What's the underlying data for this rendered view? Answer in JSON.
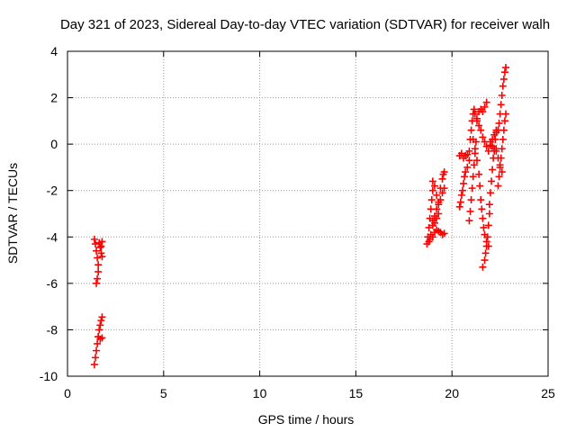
{
  "chart_data": {
    "type": "scatter",
    "title": "Day 321 of 2023, Sidereal Day-to-day VTEC variation (SDTVAR) for receiver walh",
    "xlabel": "GPS time / hours",
    "ylabel": "SDTVAR / TECUs",
    "xlim": [
      0,
      25
    ],
    "ylim": [
      -10,
      4
    ],
    "x_ticks": [
      "0",
      "5",
      "10",
      "15",
      "20",
      "25"
    ],
    "y_ticks": [
      "-10",
      "-8",
      "-6",
      "-4",
      "-2",
      "0",
      "2",
      "4"
    ],
    "grid": true,
    "marker": "plus",
    "color": "#ff0000",
    "series": [
      {
        "points": [
          [
            1.4,
            -4.1
          ],
          [
            1.45,
            -4.3
          ],
          [
            1.5,
            -4.6
          ],
          [
            1.55,
            -4.9
          ],
          [
            1.6,
            -5.2
          ],
          [
            1.6,
            -5.5
          ],
          [
            1.55,
            -5.8
          ],
          [
            1.5,
            -6.0
          ],
          [
            1.65,
            -4.25
          ],
          [
            1.7,
            -4.45
          ],
          [
            1.75,
            -4.7
          ],
          [
            1.8,
            -4.85
          ],
          [
            1.75,
            -4.4
          ],
          [
            1.8,
            -4.2
          ],
          [
            1.4,
            -9.5
          ],
          [
            1.45,
            -9.2
          ],
          [
            1.5,
            -8.9
          ],
          [
            1.55,
            -8.6
          ],
          [
            1.6,
            -8.3
          ],
          [
            1.65,
            -8.0
          ],
          [
            1.7,
            -7.8
          ],
          [
            1.75,
            -7.6
          ],
          [
            1.8,
            -7.45
          ],
          [
            1.6,
            -8.3
          ],
          [
            1.7,
            -8.4
          ],
          [
            1.8,
            -8.35
          ],
          [
            18.7,
            -4.3
          ],
          [
            18.75,
            -4.0
          ],
          [
            18.8,
            -3.6
          ],
          [
            18.85,
            -3.2
          ],
          [
            18.9,
            -2.8
          ],
          [
            18.95,
            -2.4
          ],
          [
            19.0,
            -2.0
          ],
          [
            19.0,
            -1.6
          ],
          [
            19.1,
            -1.8
          ],
          [
            19.2,
            -2.2
          ],
          [
            19.3,
            -2.5
          ],
          [
            19.4,
            -1.9
          ],
          [
            19.5,
            -1.5
          ],
          [
            19.55,
            -1.3
          ],
          [
            19.6,
            -1.2
          ],
          [
            18.8,
            -4.2
          ],
          [
            18.9,
            -3.9
          ],
          [
            19.0,
            -3.5
          ],
          [
            19.1,
            -3.1
          ],
          [
            19.2,
            -2.8
          ],
          [
            19.3,
            -2.6
          ],
          [
            19.4,
            -2.4
          ],
          [
            19.5,
            -2.1
          ],
          [
            19.6,
            -1.9
          ],
          [
            18.85,
            -4.1
          ],
          [
            19.0,
            -4.0
          ],
          [
            19.1,
            -3.8
          ],
          [
            19.2,
            -3.7
          ],
          [
            19.3,
            -3.75
          ],
          [
            19.4,
            -3.8
          ],
          [
            19.5,
            -3.9
          ],
          [
            19.6,
            -3.85
          ],
          [
            19.0,
            -3.3
          ],
          [
            19.1,
            -3.4
          ],
          [
            19.2,
            -3.2
          ],
          [
            19.3,
            -3.0
          ],
          [
            20.4,
            -0.5
          ],
          [
            20.5,
            -0.4
          ],
          [
            20.6,
            -0.6
          ],
          [
            20.7,
            -0.5
          ],
          [
            20.8,
            -0.45
          ],
          [
            20.4,
            -2.7
          ],
          [
            20.45,
            -2.5
          ],
          [
            20.5,
            -2.2
          ],
          [
            20.55,
            -2.0
          ],
          [
            20.6,
            -1.7
          ],
          [
            20.65,
            -1.4
          ],
          [
            20.7,
            -1.2
          ],
          [
            20.8,
            -1.0
          ],
          [
            20.9,
            -0.7
          ],
          [
            20.9,
            -0.3
          ],
          [
            20.95,
            0.2
          ],
          [
            21.0,
            0.6
          ],
          [
            21.05,
            1.0
          ],
          [
            21.1,
            1.3
          ],
          [
            21.15,
            1.5
          ],
          [
            21.2,
            1.3
          ],
          [
            21.3,
            1.1
          ],
          [
            21.4,
            1.4
          ],
          [
            21.5,
            1.5
          ],
          [
            21.6,
            1.4
          ],
          [
            21.7,
            1.6
          ],
          [
            21.8,
            1.8
          ],
          [
            20.9,
            -3.3
          ],
          [
            20.95,
            -2.9
          ],
          [
            21.0,
            -2.4
          ],
          [
            21.05,
            -1.9
          ],
          [
            21.1,
            -1.4
          ],
          [
            21.15,
            -0.9
          ],
          [
            21.2,
            -0.4
          ],
          [
            21.25,
            0.1
          ],
          [
            21.1,
            0.2
          ],
          [
            21.2,
            -0.2
          ],
          [
            21.3,
            -0.7
          ],
          [
            21.4,
            -1.3
          ],
          [
            21.45,
            -1.8
          ],
          [
            21.5,
            -2.4
          ],
          [
            21.55,
            -2.8
          ],
          [
            21.6,
            -3.2
          ],
          [
            21.65,
            -3.6
          ],
          [
            21.7,
            -3.9
          ],
          [
            21.8,
            -4.2
          ],
          [
            21.9,
            -4.4
          ],
          [
            21.6,
            -5.3
          ],
          [
            21.7,
            -5.0
          ],
          [
            21.75,
            -4.7
          ],
          [
            21.8,
            -4.4
          ],
          [
            21.85,
            -4.0
          ],
          [
            21.9,
            -3.5
          ],
          [
            21.95,
            -3.0
          ],
          [
            21.95,
            -2.6
          ],
          [
            22.0,
            -2.1
          ],
          [
            22.05,
            -1.6
          ],
          [
            22.1,
            -1.1
          ],
          [
            22.15,
            -0.6
          ],
          [
            22.2,
            -0.2
          ],
          [
            22.25,
            0.2
          ],
          [
            22.3,
            0.6
          ],
          [
            21.3,
            1.0
          ],
          [
            21.4,
            0.8
          ],
          [
            21.5,
            0.6
          ],
          [
            21.6,
            0.3
          ],
          [
            21.7,
            0.1
          ],
          [
            21.8,
            -0.1
          ],
          [
            21.9,
            -0.3
          ],
          [
            22.0,
            -0.05
          ],
          [
            22.1,
            0.2
          ],
          [
            22.2,
            0.4
          ],
          [
            22.3,
            0.5
          ],
          [
            22.4,
            0.6
          ],
          [
            22.0,
            0.1
          ],
          [
            22.1,
            -0.1
          ],
          [
            22.2,
            -0.3
          ],
          [
            22.3,
            -0.2
          ],
          [
            22.4,
            -1.8
          ],
          [
            22.45,
            -1.4
          ],
          [
            22.5,
            -1.0
          ],
          [
            22.55,
            -0.6
          ],
          [
            22.6,
            -0.2
          ],
          [
            22.65,
            0.2
          ],
          [
            22.7,
            0.6
          ],
          [
            22.75,
            1.0
          ],
          [
            22.8,
            1.3
          ],
          [
            22.4,
            0.6
          ],
          [
            22.45,
            0.9
          ],
          [
            22.5,
            1.3
          ],
          [
            22.55,
            1.7
          ],
          [
            22.6,
            2.1
          ],
          [
            22.65,
            2.5
          ],
          [
            22.7,
            2.8
          ],
          [
            22.75,
            3.1
          ],
          [
            22.8,
            3.3
          ],
          [
            22.3,
            -0.3
          ],
          [
            22.4,
            -0.6
          ],
          [
            22.5,
            -0.9
          ],
          [
            22.6,
            -1.2
          ]
        ]
      }
    ]
  }
}
